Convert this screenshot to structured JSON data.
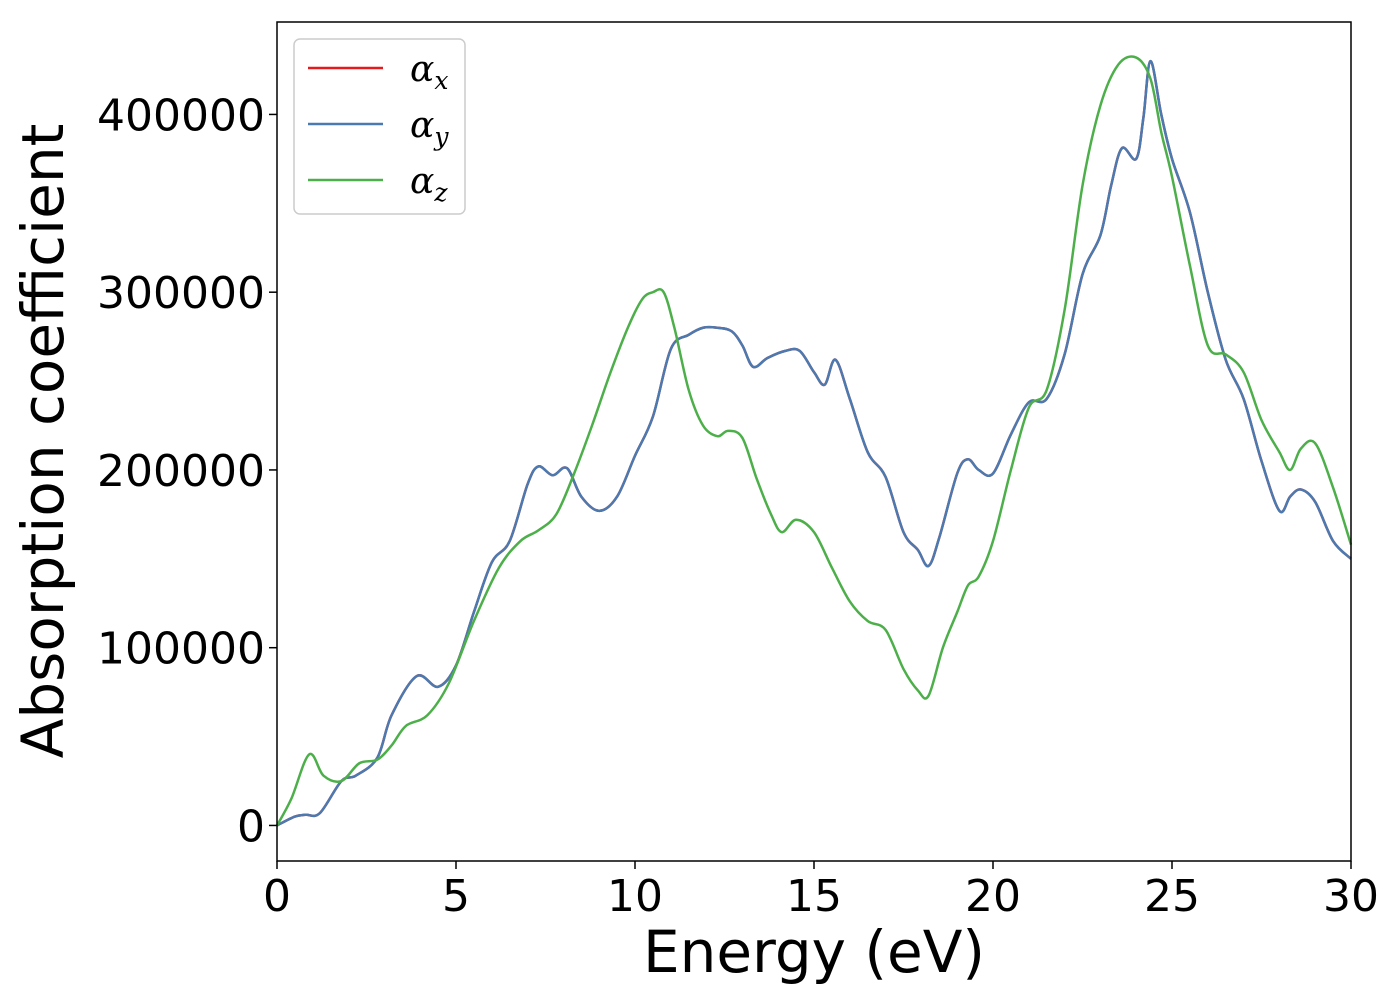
{
  "chart_data": {
    "type": "line",
    "xlabel": "Energy (eV)",
    "ylabel": "Absorption coefficient",
    "xlim": [
      0,
      30
    ],
    "ylim": [
      -20000,
      452000
    ],
    "x_ticks": [
      "0",
      "5",
      "10",
      "15",
      "20",
      "25",
      "30"
    ],
    "y_ticks": [
      "0",
      "100000",
      "200000",
      "300000",
      "400000"
    ],
    "grid": false,
    "legend_position": "top-left",
    "series": [
      {
        "name": "α_x",
        "symbol": "α",
        "subscript": "x",
        "color": "#e41a1c",
        "x": [
          0,
          0.5,
          0.8,
          1.2,
          1.8,
          2.2,
          2.8,
          3.2,
          3.9,
          4.5,
          5,
          5.5,
          6,
          6.5,
          7,
          7.3,
          7.7,
          8.1,
          8.5,
          9,
          9.5,
          10,
          10.5,
          11,
          11.5,
          11.9,
          12.3,
          12.7,
          13,
          13.3,
          13.7,
          14.2,
          14.6,
          15,
          15.3,
          15.6,
          16,
          16.5,
          17,
          17.5,
          17.9,
          18.2,
          18.5,
          19,
          19.3,
          19.6,
          20,
          20.5,
          21,
          21.5,
          22,
          22.5,
          23,
          23.3,
          23.6,
          24,
          24.2,
          24.4,
          24.7,
          25,
          25.5,
          26,
          26.5,
          27,
          27.5,
          28,
          28.3,
          28.6,
          29,
          29.5,
          30
        ],
        "values": [
          0,
          5000,
          6000,
          7000,
          25000,
          28000,
          38000,
          62000,
          84000,
          78000,
          90000,
          120000,
          148000,
          160000,
          192000,
          202000,
          197000,
          201000,
          185000,
          177000,
          185000,
          208000,
          230000,
          268000,
          276000,
          280000,
          280000,
          278000,
          270000,
          258000,
          263000,
          267000,
          267000,
          255000,
          248000,
          262000,
          240000,
          210000,
          196000,
          165000,
          155000,
          146000,
          162000,
          198000,
          206000,
          200000,
          198000,
          220000,
          238000,
          240000,
          265000,
          310000,
          332000,
          360000,
          381000,
          375000,
          398000,
          430000,
          400000,
          375000,
          345000,
          300000,
          262000,
          240000,
          205000,
          177000,
          185000,
          189000,
          182000,
          160000,
          150000
        ]
      },
      {
        "name": "α_y",
        "symbol": "α",
        "subscript": "y",
        "color": "#4a7ab0",
        "x": [
          0,
          0.5,
          0.8,
          1.2,
          1.8,
          2.2,
          2.8,
          3.2,
          3.9,
          4.5,
          5,
          5.5,
          6,
          6.5,
          7,
          7.3,
          7.7,
          8.1,
          8.5,
          9,
          9.5,
          10,
          10.5,
          11,
          11.5,
          11.9,
          12.3,
          12.7,
          13,
          13.3,
          13.7,
          14.2,
          14.6,
          15,
          15.3,
          15.6,
          16,
          16.5,
          17,
          17.5,
          17.9,
          18.2,
          18.5,
          19,
          19.3,
          19.6,
          20,
          20.5,
          21,
          21.5,
          22,
          22.5,
          23,
          23.3,
          23.6,
          24,
          24.2,
          24.4,
          24.7,
          25,
          25.5,
          26,
          26.5,
          27,
          27.5,
          28,
          28.3,
          28.6,
          29,
          29.5,
          30
        ],
        "values": [
          0,
          5000,
          6000,
          7000,
          25000,
          28000,
          38000,
          62000,
          84000,
          78000,
          90000,
          120000,
          148000,
          160000,
          192000,
          202000,
          197000,
          201000,
          185000,
          177000,
          185000,
          208000,
          230000,
          268000,
          276000,
          280000,
          280000,
          278000,
          270000,
          258000,
          263000,
          267000,
          267000,
          255000,
          248000,
          262000,
          240000,
          210000,
          196000,
          165000,
          155000,
          146000,
          162000,
          198000,
          206000,
          200000,
          198000,
          220000,
          238000,
          240000,
          265000,
          310000,
          332000,
          360000,
          381000,
          375000,
          398000,
          430000,
          400000,
          375000,
          345000,
          300000,
          262000,
          240000,
          205000,
          177000,
          185000,
          189000,
          182000,
          160000,
          150000
        ]
      },
      {
        "name": "α_z",
        "symbol": "α",
        "subscript": "z",
        "color": "#4daf4a",
        "x": [
          0,
          0.4,
          0.9,
          1.3,
          1.8,
          2.3,
          2.8,
          3.2,
          3.6,
          4.2,
          4.8,
          5.5,
          6.2,
          6.8,
          7.3,
          7.8,
          8.3,
          8.8,
          9.3,
          9.8,
          10.2,
          10.5,
          10.8,
          11.1,
          11.5,
          11.9,
          12.3,
          12.6,
          13,
          13.4,
          13.8,
          14.1,
          14.5,
          15,
          15.5,
          16,
          16.5,
          17,
          17.5,
          17.9,
          18.2,
          18.6,
          19,
          19.3,
          19.6,
          20,
          20.5,
          21,
          21.5,
          22,
          22.5,
          23,
          23.5,
          24,
          24.4,
          24.7,
          25,
          25.5,
          26,
          26.5,
          27,
          27.5,
          28,
          28.3,
          28.6,
          29,
          29.5,
          30
        ],
        "values": [
          0,
          15000,
          40000,
          28000,
          25000,
          35000,
          37000,
          45000,
          56000,
          62000,
          80000,
          115000,
          145000,
          160000,
          166000,
          175000,
          198000,
          225000,
          254000,
          280000,
          296000,
          300000,
          300000,
          280000,
          245000,
          225000,
          219000,
          222000,
          218000,
          195000,
          175000,
          165000,
          172000,
          165000,
          145000,
          126000,
          115000,
          110000,
          88000,
          76000,
          73000,
          100000,
          120000,
          135000,
          140000,
          160000,
          200000,
          235000,
          245000,
          290000,
          360000,
          405000,
          428000,
          432000,
          420000,
          390000,
          365000,
          315000,
          270000,
          265000,
          255000,
          228000,
          210000,
          200000,
          212000,
          215000,
          190000,
          158000
        ]
      }
    ]
  }
}
